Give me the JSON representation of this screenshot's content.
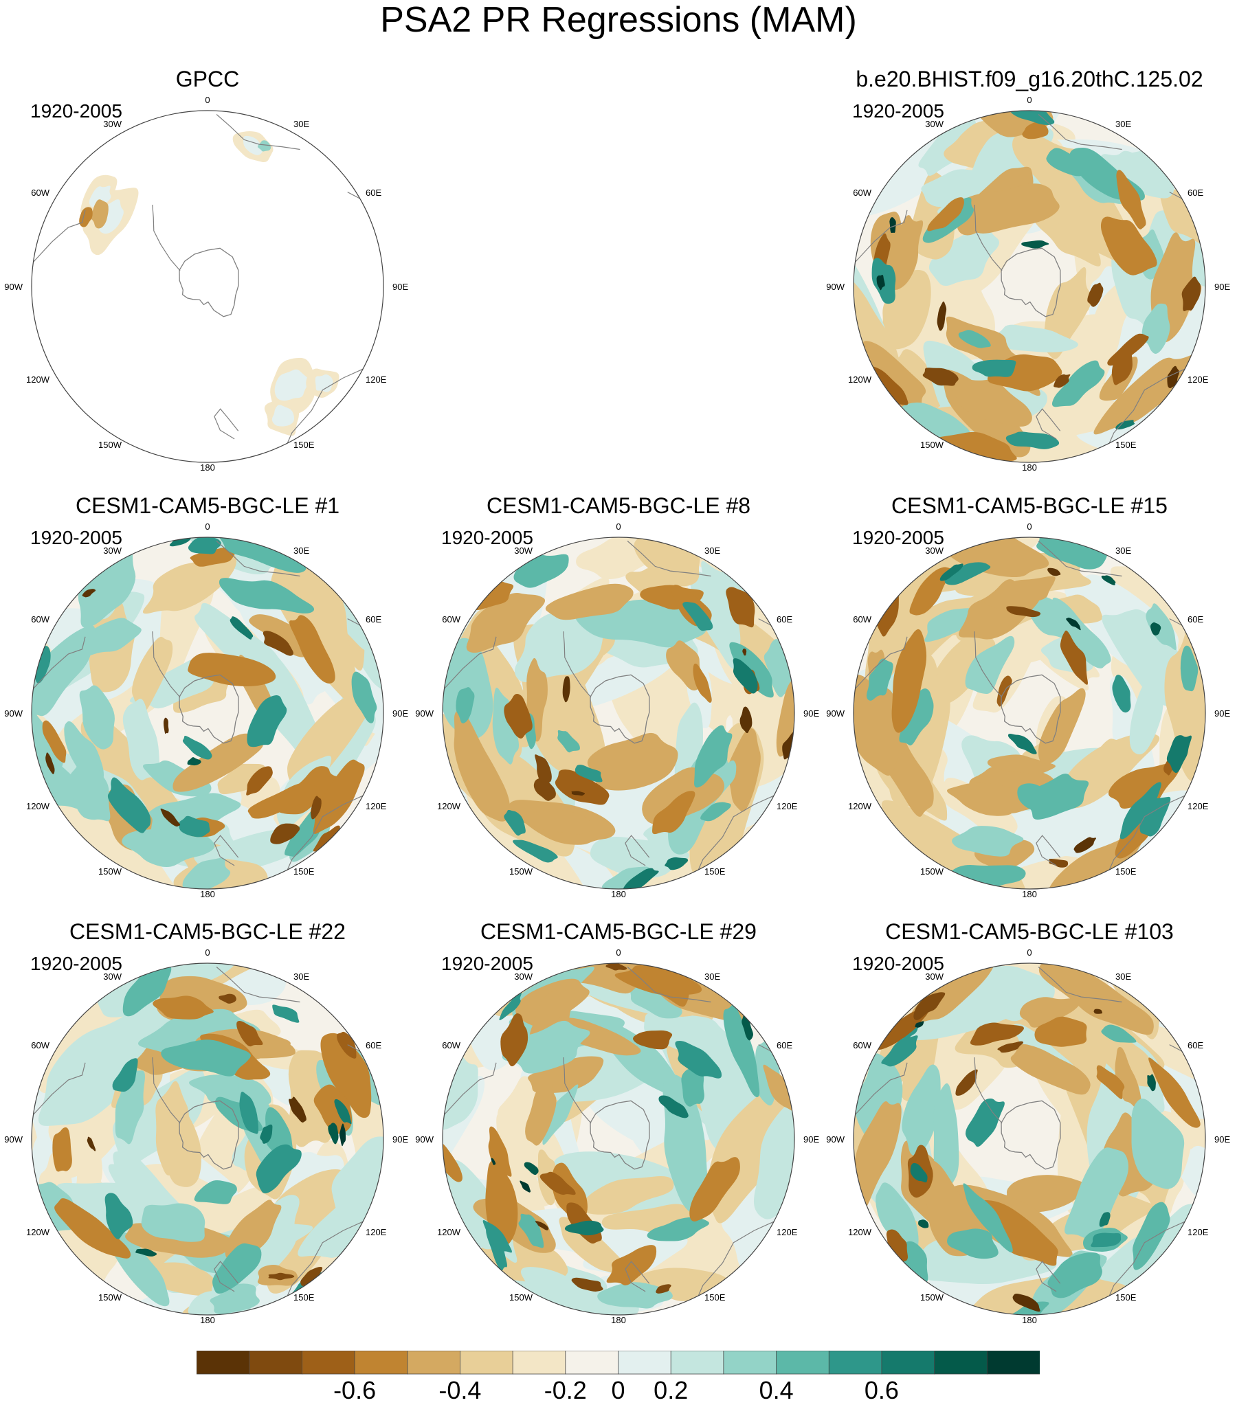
{
  "title": "PSA2 PR Regressions (MAM)",
  "period": "1920-2005",
  "lon_labels": [
    "0",
    "30E",
    "60E",
    "90E",
    "120E",
    "150E",
    "180",
    "150W",
    "120W",
    "90W",
    "60W",
    "30W"
  ],
  "colors": {
    "brown_dark": "#5b3306",
    "tan_light": "#f3ead8",
    "neutral": "#f5f2ea",
    "teal_light": "#e3f0ef",
    "teal_dark": "#003a30",
    "land_line": "#808080"
  },
  "panels": [
    {
      "id": "gpcc",
      "title": "GPCC",
      "period": "1920-2005",
      "obs": true
    },
    {
      "id": "bhist",
      "title": "b.e20.BHIST.f09_g16.20thC.125.02",
      "period": "1920-2005",
      "obs": false
    },
    {
      "id": "le1",
      "title": "CESM1-CAM5-BGC-LE #1",
      "period": "1920-2005",
      "obs": false
    },
    {
      "id": "le8",
      "title": "CESM1-CAM5-BGC-LE #8",
      "period": "1920-2005",
      "obs": false
    },
    {
      "id": "le15",
      "title": "CESM1-CAM5-BGC-LE #15",
      "period": "1920-2005",
      "obs": false
    },
    {
      "id": "le22",
      "title": "CESM1-CAM5-BGC-LE #22",
      "period": "1920-2005",
      "obs": false
    },
    {
      "id": "le29",
      "title": "CESM1-CAM5-BGC-LE #29",
      "period": "1920-2005",
      "obs": false
    },
    {
      "id": "le103",
      "title": "CESM1-CAM5-BGC-LE #103",
      "period": "1920-2005",
      "obs": false
    }
  ],
  "colorbar": {
    "colors": [
      "#5b3306",
      "#7f4a0f",
      "#9e6018",
      "#c08431",
      "#d4a961",
      "#e8cf98",
      "#f3e6c6",
      "#f5f2ea",
      "#e3f0ef",
      "#c4e6df",
      "#93d3c7",
      "#5cb8a8",
      "#2e978a",
      "#157a6c",
      "#045a4a",
      "#003a30"
    ],
    "tick_labels": [
      "-0.6",
      "-0.4",
      "-0.2",
      "0",
      "0.2",
      "0.4",
      "0.6"
    ]
  }
}
